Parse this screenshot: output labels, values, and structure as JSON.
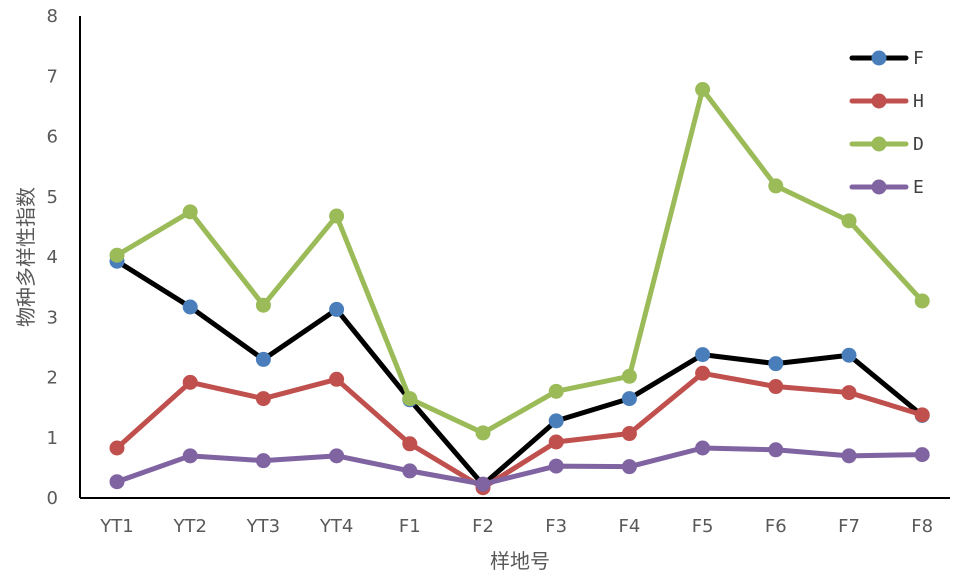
{
  "chart_data": {
    "type": "line",
    "title": "",
    "xlabel": "样地号",
    "ylabel": "物种多样性指数",
    "categories": [
      "YT1",
      "YT2",
      "YT3",
      "YT4",
      "F1",
      "F2",
      "F3",
      "F4",
      "F5",
      "F6",
      "F7",
      "F8"
    ],
    "ylim": [
      0,
      8
    ],
    "yticks": [
      0,
      1,
      2,
      3,
      4,
      5,
      6,
      7,
      8
    ],
    "grid": false,
    "legend_position": "top-right",
    "series": [
      {
        "name": "F",
        "line_color": "#000000",
        "marker_color": "#4A7EBB",
        "values": [
          3.93,
          3.17,
          2.3,
          3.13,
          1.63,
          0.22,
          1.28,
          1.65,
          2.38,
          2.23,
          2.37,
          1.37
        ]
      },
      {
        "name": "H",
        "line_color": "#C0504D",
        "marker_color": "#C0504D",
        "values": [
          0.83,
          1.92,
          1.65,
          1.97,
          0.9,
          0.17,
          0.93,
          1.07,
          2.07,
          1.85,
          1.75,
          1.38
        ]
      },
      {
        "name": "D",
        "line_color": "#9BBB59",
        "marker_color": "#9BBB59",
        "values": [
          4.03,
          4.75,
          3.2,
          4.68,
          1.65,
          1.08,
          1.77,
          2.02,
          6.78,
          5.18,
          4.6,
          3.27
        ]
      },
      {
        "name": "E",
        "line_color": "#8064A2",
        "marker_color": "#8064A2",
        "values": [
          0.27,
          0.7,
          0.62,
          0.7,
          0.45,
          0.23,
          0.53,
          0.52,
          0.83,
          0.8,
          0.7,
          0.72
        ]
      }
    ]
  }
}
